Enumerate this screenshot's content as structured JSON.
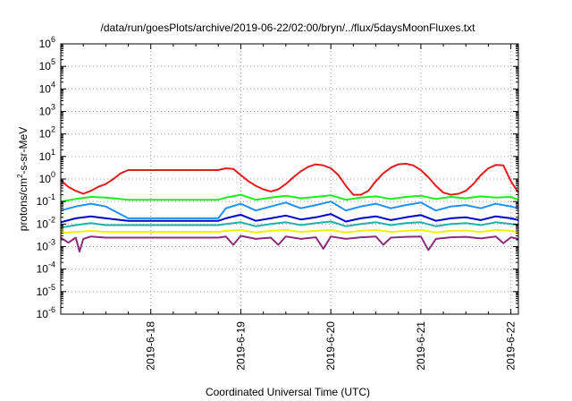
{
  "chart_data": {
    "type": "line",
    "title": "/data/run/goesPlots/archive/2019-06-22/02:00/bryn/../flux/5daysMoonFluxes.txt",
    "xlabel": "Coordinated Universal Time (UTC)",
    "ylabel_base": "protons/cm",
    "ylabel_sup": "2",
    "ylabel_rest": "-s-sr-MeV",
    "y_scale": "log",
    "ylim_exp": [
      -6,
      6
    ],
    "y_tick_exponents": [
      -6,
      -5,
      -4,
      -3,
      -2,
      -1,
      0,
      1,
      2,
      3,
      4,
      5,
      6
    ],
    "y_tick_base": "10",
    "xlim_hours": [
      0,
      122
    ],
    "x_ticks": [
      {
        "label": "2019-6-18",
        "hour": 24
      },
      {
        "label": "2019-6-19",
        "hour": 48
      },
      {
        "label": "2019-6-20",
        "hour": 72
      },
      {
        "label": "2019-6-21",
        "hour": 96
      },
      {
        "label": "2019-6-22",
        "hour": 120
      }
    ],
    "grid": "dotted, x and y",
    "legend": "none",
    "series": [
      {
        "color": "#e41a1c",
        "values": [
          [
            0,
            0.9
          ],
          [
            2,
            0.45
          ],
          [
            4,
            0.3
          ],
          [
            6,
            0.22
          ],
          [
            8,
            0.3
          ],
          [
            10,
            0.45
          ],
          [
            12,
            0.6
          ],
          [
            14,
            1.0
          ],
          [
            16,
            1.8
          ],
          [
            18,
            2.5
          ],
          [
            42,
            2.5
          ],
          [
            44,
            3.0
          ],
          [
            46,
            2.8
          ],
          [
            48,
            1.5
          ],
          [
            50,
            0.8
          ],
          [
            52,
            0.5
          ],
          [
            54,
            0.35
          ],
          [
            56,
            0.28
          ],
          [
            58,
            0.35
          ],
          [
            60,
            0.6
          ],
          [
            62,
            1.2
          ],
          [
            64,
            2.2
          ],
          [
            66,
            3.5
          ],
          [
            68,
            4.5
          ],
          [
            70,
            4.0
          ],
          [
            72,
            3.0
          ],
          [
            74,
            1.5
          ],
          [
            76,
            0.5
          ],
          [
            78,
            0.2
          ],
          [
            80,
            0.2
          ],
          [
            82,
            0.3
          ],
          [
            84,
            0.8
          ],
          [
            86,
            1.8
          ],
          [
            88,
            3.2
          ],
          [
            90,
            4.5
          ],
          [
            92,
            4.8
          ],
          [
            94,
            4.0
          ],
          [
            96,
            2.5
          ],
          [
            98,
            1.2
          ],
          [
            100,
            0.5
          ],
          [
            102,
            0.25
          ],
          [
            104,
            0.2
          ],
          [
            106,
            0.22
          ],
          [
            108,
            0.3
          ],
          [
            110,
            0.6
          ],
          [
            112,
            1.5
          ],
          [
            114,
            3.0
          ],
          [
            116,
            4.2
          ],
          [
            118,
            4.0
          ],
          [
            120,
            0.8
          ],
          [
            122,
            0.25
          ]
        ]
      },
      {
        "color": "#1aee1a",
        "values": [
          [
            0,
            0.1
          ],
          [
            4,
            0.13
          ],
          [
            8,
            0.16
          ],
          [
            12,
            0.15
          ],
          [
            18,
            0.12
          ],
          [
            42,
            0.12
          ],
          [
            44,
            0.15
          ],
          [
            48,
            0.2
          ],
          [
            52,
            0.12
          ],
          [
            56,
            0.15
          ],
          [
            60,
            0.18
          ],
          [
            64,
            0.14
          ],
          [
            68,
            0.16
          ],
          [
            72,
            0.19
          ],
          [
            76,
            0.12
          ],
          [
            80,
            0.15
          ],
          [
            84,
            0.17
          ],
          [
            88,
            0.13
          ],
          [
            92,
            0.16
          ],
          [
            96,
            0.18
          ],
          [
            100,
            0.13
          ],
          [
            104,
            0.16
          ],
          [
            108,
            0.14
          ],
          [
            112,
            0.17
          ],
          [
            116,
            0.15
          ],
          [
            120,
            0.16
          ],
          [
            122,
            0.12
          ]
        ]
      },
      {
        "color": "#1e90ff",
        "values": [
          [
            0,
            0.04
          ],
          [
            4,
            0.06
          ],
          [
            8,
            0.08
          ],
          [
            12,
            0.06
          ],
          [
            18,
            0.018
          ],
          [
            42,
            0.018
          ],
          [
            44,
            0.05
          ],
          [
            48,
            0.08
          ],
          [
            52,
            0.04
          ],
          [
            56,
            0.06
          ],
          [
            60,
            0.09
          ],
          [
            64,
            0.05
          ],
          [
            68,
            0.07
          ],
          [
            72,
            0.1
          ],
          [
            76,
            0.04
          ],
          [
            80,
            0.06
          ],
          [
            84,
            0.08
          ],
          [
            88,
            0.05
          ],
          [
            92,
            0.07
          ],
          [
            96,
            0.09
          ],
          [
            100,
            0.04
          ],
          [
            104,
            0.06
          ],
          [
            108,
            0.07
          ],
          [
            112,
            0.05
          ],
          [
            116,
            0.08
          ],
          [
            120,
            0.06
          ],
          [
            122,
            0.05
          ]
        ]
      },
      {
        "color": "#0000cd",
        "values": [
          [
            0,
            0.012
          ],
          [
            4,
            0.018
          ],
          [
            8,
            0.022
          ],
          [
            12,
            0.018
          ],
          [
            18,
            0.014
          ],
          [
            42,
            0.014
          ],
          [
            44,
            0.018
          ],
          [
            48,
            0.026
          ],
          [
            52,
            0.014
          ],
          [
            56,
            0.018
          ],
          [
            60,
            0.024
          ],
          [
            64,
            0.016
          ],
          [
            68,
            0.02
          ],
          [
            72,
            0.028
          ],
          [
            76,
            0.013
          ],
          [
            80,
            0.018
          ],
          [
            84,
            0.022
          ],
          [
            88,
            0.015
          ],
          [
            92,
            0.02
          ],
          [
            96,
            0.025
          ],
          [
            100,
            0.014
          ],
          [
            104,
            0.018
          ],
          [
            108,
            0.02
          ],
          [
            112,
            0.015
          ],
          [
            116,
            0.022
          ],
          [
            120,
            0.018
          ],
          [
            122,
            0.015
          ]
        ]
      },
      {
        "color": "#20b2aa",
        "values": [
          [
            0,
            0.007
          ],
          [
            4,
            0.009
          ],
          [
            8,
            0.011
          ],
          [
            12,
            0.009
          ],
          [
            18,
            0.009
          ],
          [
            42,
            0.009
          ],
          [
            44,
            0.01
          ],
          [
            48,
            0.012
          ],
          [
            52,
            0.008
          ],
          [
            56,
            0.01
          ],
          [
            60,
            0.012
          ],
          [
            64,
            0.009
          ],
          [
            68,
            0.011
          ],
          [
            72,
            0.013
          ],
          [
            76,
            0.008
          ],
          [
            80,
            0.01
          ],
          [
            84,
            0.012
          ],
          [
            88,
            0.009
          ],
          [
            92,
            0.011
          ],
          [
            96,
            0.012
          ],
          [
            100,
            0.008
          ],
          [
            104,
            0.01
          ],
          [
            108,
            0.011
          ],
          [
            112,
            0.009
          ],
          [
            116,
            0.012
          ],
          [
            120,
            0.01
          ],
          [
            122,
            0.009
          ]
        ]
      },
      {
        "color": "#f0f000",
        "values": [
          [
            0,
            0.004
          ],
          [
            4,
            0.0045
          ],
          [
            8,
            0.005
          ],
          [
            12,
            0.0045
          ],
          [
            18,
            0.0045
          ],
          [
            42,
            0.0045
          ],
          [
            44,
            0.005
          ],
          [
            48,
            0.0055
          ],
          [
            52,
            0.0042
          ],
          [
            56,
            0.005
          ],
          [
            60,
            0.0055
          ],
          [
            64,
            0.0045
          ],
          [
            68,
            0.005
          ],
          [
            72,
            0.0055
          ],
          [
            76,
            0.0042
          ],
          [
            80,
            0.005
          ],
          [
            84,
            0.0055
          ],
          [
            88,
            0.0045
          ],
          [
            92,
            0.005
          ],
          [
            96,
            0.0055
          ],
          [
            100,
            0.0042
          ],
          [
            104,
            0.005
          ],
          [
            108,
            0.0052
          ],
          [
            112,
            0.0045
          ],
          [
            116,
            0.0055
          ],
          [
            120,
            0.005
          ],
          [
            122,
            0.0045
          ]
        ]
      },
      {
        "color": "#8b2d7a",
        "values": [
          [
            0,
            0.0025
          ],
          [
            2,
            0.0015
          ],
          [
            4,
            0.0025
          ],
          [
            5,
            0.0006
          ],
          [
            6,
            0.0022
          ],
          [
            8,
            0.0028
          ],
          [
            12,
            0.0025
          ],
          [
            18,
            0.0025
          ],
          [
            42,
            0.0025
          ],
          [
            44,
            0.0028
          ],
          [
            46,
            0.0012
          ],
          [
            48,
            0.003
          ],
          [
            52,
            0.0022
          ],
          [
            56,
            0.0025
          ],
          [
            58,
            0.0012
          ],
          [
            60,
            0.0028
          ],
          [
            64,
            0.0022
          ],
          [
            68,
            0.0026
          ],
          [
            70,
            0.0008
          ],
          [
            72,
            0.0028
          ],
          [
            76,
            0.0022
          ],
          [
            80,
            0.0026
          ],
          [
            84,
            0.0028
          ],
          [
            86,
            0.0012
          ],
          [
            88,
            0.0025
          ],
          [
            92,
            0.0027
          ],
          [
            96,
            0.0028
          ],
          [
            98,
            0.0007
          ],
          [
            100,
            0.0022
          ],
          [
            104,
            0.0026
          ],
          [
            108,
            0.0027
          ],
          [
            112,
            0.0023
          ],
          [
            116,
            0.0028
          ],
          [
            118,
            0.0014
          ],
          [
            120,
            0.0026
          ],
          [
            122,
            0.0022
          ]
        ]
      }
    ]
  }
}
